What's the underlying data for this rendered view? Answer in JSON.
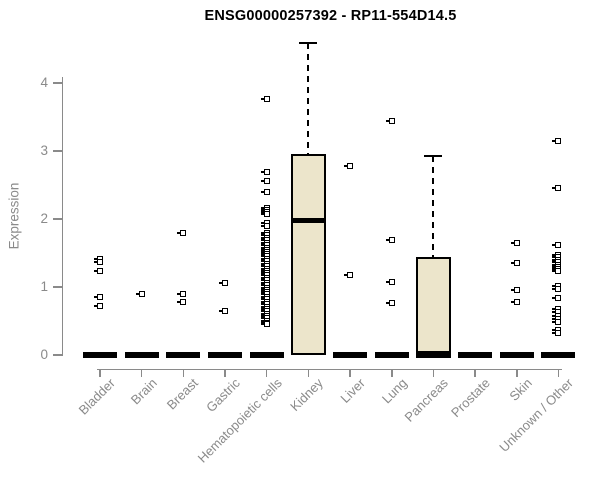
{
  "chart_data": {
    "type": "boxplot",
    "title": "ENSG00000257392 - RP11-554D14.5",
    "xlabel": "",
    "ylabel": "Expression",
    "ylim": [
      0,
      4.6
    ],
    "yticks": [
      0,
      1,
      2,
      3,
      4
    ],
    "grid": false,
    "legend": "none",
    "colors": {
      "box_fill": "#ece5cb",
      "box_border": "#000000",
      "median": "#000000",
      "point": "#000000",
      "axis": "#8a8a8a",
      "tick_label": "#8a8a8a",
      "title": "#000000"
    },
    "categories": [
      {
        "label": "Bladder",
        "median": 0,
        "outliers": [
          1.41,
          1.37,
          1.24,
          0.86,
          0.72
        ]
      },
      {
        "label": "Brain",
        "median": 0,
        "outliers": [
          0.89
        ]
      },
      {
        "label": "Breast",
        "median": 0,
        "outliers": [
          1.79,
          0.89,
          0.78
        ]
      },
      {
        "label": "Gastric",
        "median": 0,
        "outliers": [
          1.06,
          0.65
        ]
      },
      {
        "label": "Hematopoietic cells",
        "median": 0,
        "outliers": [
          3.77,
          2.69,
          2.56,
          2.39,
          2.16,
          2.13,
          2.1,
          2.07,
          1.94,
          1.89,
          1.79,
          1.76,
          1.72,
          1.69,
          1.65,
          1.62,
          1.58,
          1.55,
          1.51,
          1.48,
          1.45,
          1.41,
          1.38,
          1.34,
          1.31,
          1.27,
          1.24,
          1.2,
          1.17,
          1.13,
          1.1,
          1.06,
          1.03,
          0.99,
          0.96,
          0.92,
          0.89,
          0.85,
          0.82,
          0.78,
          0.75,
          0.71,
          0.68,
          0.64,
          0.61,
          0.57,
          0.54,
          0.5,
          0.47,
          0.45
        ]
      },
      {
        "label": "Kidney",
        "outliers": [],
        "box": {
          "q1": 0,
          "median": 1.98,
          "q3": 2.96,
          "whisker_low": 0,
          "whisker_high": 4.59
        }
      },
      {
        "label": "Liver",
        "median": 0,
        "outliers": [
          2.78,
          1.17
        ]
      },
      {
        "label": "Lung",
        "median": 0,
        "outliers": [
          3.44,
          1.69,
          1.08,
          0.77
        ]
      },
      {
        "label": "Pancreas",
        "outliers": [],
        "box": {
          "q1": 0,
          "median": 0,
          "q3": 1.44,
          "whisker_low": 0,
          "whisker_high": 2.93
        }
      },
      {
        "label": "Prostate",
        "median": 0,
        "outliers": []
      },
      {
        "label": "Skin",
        "median": 0,
        "outliers": [
          1.64,
          1.35,
          0.96,
          0.78
        ]
      },
      {
        "label": "Unknown / Other",
        "median": 0,
        "outliers": [
          3.15,
          2.46,
          1.62,
          1.47,
          1.44,
          1.4,
          1.37,
          1.33,
          1.3,
          1.26,
          1.23,
          1.01,
          0.97,
          0.84,
          0.67,
          0.63,
          0.58,
          0.53,
          0.49,
          0.37,
          0.33
        ]
      }
    ]
  }
}
